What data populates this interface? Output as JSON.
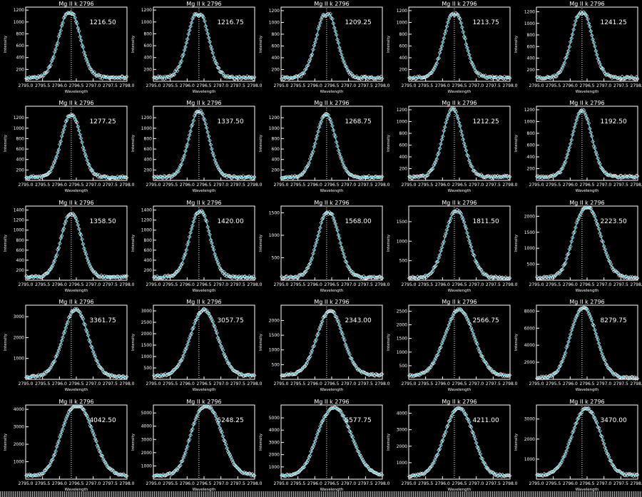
{
  "colors": {
    "background": "#000000",
    "axes": "#ffffff",
    "fit": "#5fd3e6",
    "observed": "#ffffff"
  },
  "chart_data": {
    "type": "line",
    "layout_grid": {
      "rows": 5,
      "cols": 5
    },
    "panels": [
      {
        "title": "Mg II k 2796",
        "annotation": "1216.50",
        "xlabel": "Wavelength",
        "ylabel": "Intensity",
        "xlim": [
          2795.0,
          2798.0
        ],
        "ylim": [
          0,
          1250
        ],
        "yticks": [
          "200",
          "400",
          "600",
          "800",
          "1000",
          "1200"
        ],
        "peak": 1216.5,
        "center": 2796.3,
        "width": 0.31,
        "dip": 0.06,
        "base": 60,
        "shoulder": 0,
        "shoulder_side": 0
      },
      {
        "title": "Mg II k 2796",
        "annotation": "1216.75",
        "xlabel": "Wavelength",
        "ylabel": "Intensity",
        "xlim": [
          2795.0,
          2798.0
        ],
        "ylim": [
          0,
          1250
        ],
        "yticks": [
          "200",
          "400",
          "600",
          "800",
          "1000",
          "1200"
        ],
        "peak": 1216.75,
        "center": 2796.33,
        "width": 0.3,
        "dip": 0.1,
        "base": 60,
        "shoulder": 0,
        "shoulder_side": 0
      },
      {
        "title": "Mg II k 2796",
        "annotation": "1209.25",
        "xlabel": "Wavelength",
        "ylabel": "Intensity",
        "xlim": [
          2795.0,
          2798.0
        ],
        "ylim": [
          0,
          1260
        ],
        "yticks": [
          "200",
          "400",
          "600",
          "800",
          "1000",
          "1200"
        ],
        "peak": 1209.25,
        "center": 2796.35,
        "width": 0.3,
        "dip": 0.08,
        "base": 60,
        "shoulder": 0,
        "shoulder_side": 0
      },
      {
        "title": "Mg II k 2796",
        "annotation": "1213.75",
        "xlabel": "Wavelength",
        "ylabel": "Intensity",
        "xlim": [
          2795.0,
          2798.0
        ],
        "ylim": [
          0,
          1260
        ],
        "yticks": [
          "200",
          "400",
          "600",
          "800",
          "1000",
          "1200"
        ],
        "peak": 1213.75,
        "center": 2796.35,
        "width": 0.3,
        "dip": 0.07,
        "base": 60,
        "shoulder": 0,
        "shoulder_side": 0
      },
      {
        "title": "Mg II k 2796",
        "annotation": "1241.25",
        "xlabel": "Wavelength",
        "ylabel": "Intensity",
        "xlim": [
          2795.0,
          2798.0
        ],
        "ylim": [
          0,
          1280
        ],
        "yticks": [
          "200",
          "400",
          "600",
          "800",
          "1000",
          "1200"
        ],
        "peak": 1241.25,
        "center": 2796.35,
        "width": 0.3,
        "dip": 0.06,
        "base": 60,
        "shoulder": 0,
        "shoulder_side": 0
      },
      {
        "title": "Mg II k 2796",
        "annotation": "1277.25",
        "xlabel": "Wavelength",
        "ylabel": "Intensity",
        "xlim": [
          2795.0,
          2798.0
        ],
        "ylim": [
          0,
          1420
        ],
        "yticks": [
          "200",
          "400",
          "600",
          "800",
          "1000",
          "1200",
          "1400"
        ],
        "peak": 1277.25,
        "center": 2796.35,
        "width": 0.29,
        "dip": 0.03,
        "base": 60,
        "shoulder": 0,
        "shoulder_side": 0
      },
      {
        "title": "Mg II k 2796",
        "annotation": "1337.50",
        "xlabel": "Wavelength",
        "ylabel": "Intensity",
        "xlim": [
          2795.0,
          2798.0
        ],
        "ylim": [
          0,
          1420
        ],
        "yticks": [
          "200",
          "400",
          "600",
          "800",
          "1000",
          "1200",
          "1400"
        ],
        "peak": 1337.5,
        "center": 2796.35,
        "width": 0.29,
        "dip": 0.0,
        "base": 60,
        "shoulder": 0,
        "shoulder_side": 0
      },
      {
        "title": "Mg II k 2796",
        "annotation": "1268.75",
        "xlabel": "Wavelength",
        "ylabel": "Intensity",
        "xlim": [
          2795.0,
          2798.0
        ],
        "ylim": [
          0,
          1420
        ],
        "yticks": [
          "200",
          "400",
          "600",
          "800",
          "1000",
          "1200",
          "1400"
        ],
        "peak": 1268.75,
        "center": 2796.33,
        "width": 0.29,
        "dip": 0.0,
        "base": 60,
        "shoulder": 0,
        "shoulder_side": 0
      },
      {
        "title": "Mg II k 2796",
        "annotation": "1212.25",
        "xlabel": "Wavelength",
        "ylabel": "Intensity",
        "xlim": [
          2795.0,
          2798.0
        ],
        "ylim": [
          0,
          1260
        ],
        "yticks": [
          "200",
          "400",
          "600",
          "800",
          "1000",
          "1200"
        ],
        "peak": 1212.25,
        "center": 2796.3,
        "width": 0.29,
        "dip": 0.0,
        "base": 60,
        "shoulder": 0,
        "shoulder_side": 0
      },
      {
        "title": "Mg II k 2796",
        "annotation": "1192.50",
        "xlabel": "Wavelength",
        "ylabel": "Intensity",
        "xlim": [
          2795.0,
          2798.0
        ],
        "ylim": [
          0,
          1260
        ],
        "yticks": [
          "200",
          "400",
          "600",
          "800",
          "1000",
          "1200"
        ],
        "peak": 1192.5,
        "center": 2796.35,
        "width": 0.29,
        "dip": 0.0,
        "base": 60,
        "shoulder": 0,
        "shoulder_side": 0
      },
      {
        "title": "Mg II k 2796",
        "annotation": "1358.50",
        "xlabel": "Wavelength",
        "ylabel": "Intensity",
        "xlim": [
          2795.0,
          2798.0
        ],
        "ylim": [
          0,
          1480
        ],
        "yticks": [
          "200",
          "400",
          "600",
          "800",
          "1000",
          "1200",
          "1400"
        ],
        "peak": 1358.5,
        "center": 2796.35,
        "width": 0.3,
        "dip": 0.04,
        "base": 60,
        "shoulder": 0,
        "shoulder_side": 0
      },
      {
        "title": "Mg II k 2796",
        "annotation": "1420.00",
        "xlabel": "Wavelength",
        "ylabel": "Intensity",
        "xlim": [
          2795.0,
          2798.0
        ],
        "ylim": [
          0,
          1480
        ],
        "yticks": [
          "200",
          "400",
          "600",
          "800",
          "1000",
          "1200",
          "1400"
        ],
        "peak": 1420.0,
        "center": 2796.38,
        "width": 0.3,
        "dip": 0.03,
        "base": 60,
        "shoulder": 0,
        "shoulder_side": 0
      },
      {
        "title": "Mg II k 2796",
        "annotation": "1568.00",
        "xlabel": "Wavelength",
        "ylabel": "Intensity",
        "xlim": [
          2795.0,
          2798.0
        ],
        "ylim": [
          0,
          1650
        ],
        "yticks": [
          "500",
          "1000",
          "1500"
        ],
        "peak": 1568.0,
        "center": 2796.4,
        "width": 0.31,
        "dip": 0.05,
        "base": 60,
        "shoulder": 0,
        "shoulder_side": 0
      },
      {
        "title": "Mg II k 2796",
        "annotation": "1811.50",
        "xlabel": "Wavelength",
        "ylabel": "Intensity",
        "xlim": [
          2795.0,
          2798.0
        ],
        "ylim": [
          0,
          1900
        ],
        "yticks": [
          "500",
          "1000",
          "1500"
        ],
        "peak": 1811.5,
        "center": 2796.42,
        "width": 0.34,
        "dip": 0.02,
        "base": 60,
        "shoulder": 0,
        "shoulder_side": 0
      },
      {
        "title": "Mg II k 2796",
        "annotation": "2223.50",
        "xlabel": "Wavelength",
        "ylabel": "Intensity",
        "xlim": [
          2795.0,
          2798.0
        ],
        "ylim": [
          0,
          2320
        ],
        "yticks": [
          "500",
          "1000",
          "1500",
          "2000"
        ],
        "peak": 2223.5,
        "center": 2796.55,
        "width": 0.36,
        "dip": 0.0,
        "base": 80,
        "shoulder": 0.18,
        "shoulder_side": -1
      },
      {
        "title": "Mg II k 2796",
        "annotation": "3361.75",
        "xlabel": "Wavelength",
        "ylabel": "Intensity",
        "xlim": [
          2795.0,
          2798.0
        ],
        "ylim": [
          0,
          3550
        ],
        "yticks": [
          "1000",
          "2000",
          "3000"
        ],
        "peak": 3361.75,
        "center": 2796.48,
        "width": 0.37,
        "dip": 0.0,
        "base": 120,
        "shoulder": 0,
        "shoulder_side": 0
      },
      {
        "title": "Mg II k 2796",
        "annotation": "3057.75",
        "xlabel": "Wavelength",
        "ylabel": "Intensity",
        "xlim": [
          2795.0,
          2798.0
        ],
        "ylim": [
          0,
          3250
        ],
        "yticks": [
          "500",
          "1000",
          "1500",
          "2000",
          "2500",
          "3000"
        ],
        "peak": 3057.75,
        "center": 2796.5,
        "width": 0.4,
        "dip": 0.0,
        "base": 150,
        "shoulder": 0,
        "shoulder_side": 0
      },
      {
        "title": "Mg II k 2796",
        "annotation": "2343.00",
        "xlabel": "Wavelength",
        "ylabel": "Intensity",
        "xlim": [
          2795.0,
          2798.0
        ],
        "ylim": [
          0,
          2520
        ],
        "yticks": [
          "500",
          "1000",
          "1500",
          "2000",
          "2500"
        ],
        "peak": 2343.0,
        "center": 2796.45,
        "width": 0.38,
        "dip": 0.0,
        "base": 150,
        "shoulder": 0,
        "shoulder_side": 0
      },
      {
        "title": "Mg II k 2796",
        "annotation": "2566.75",
        "xlabel": "Wavelength",
        "ylabel": "Intensity",
        "xlim": [
          2795.0,
          2798.0
        ],
        "ylim": [
          0,
          2720
        ],
        "yticks": [
          "500",
          "1000",
          "1500",
          "2000",
          "2500"
        ],
        "peak": 2566.75,
        "center": 2796.5,
        "width": 0.43,
        "dip": 0.0,
        "base": 120,
        "shoulder": 0,
        "shoulder_side": 0
      },
      {
        "title": "Mg II k 2796",
        "annotation": "8279.75",
        "xlabel": "Wavelength",
        "ylabel": "Intensity",
        "xlim": [
          2795.0,
          2798.0
        ],
        "ylim": [
          0,
          8700
        ],
        "yticks": [
          "2000",
          "4000",
          "6000",
          "8000"
        ],
        "peak": 8279.75,
        "center": 2796.42,
        "width": 0.36,
        "dip": 0.0,
        "base": 200,
        "shoulder": 0.1,
        "shoulder_side": -1
      },
      {
        "title": "Mg II k 2796",
        "annotation": "4042.50",
        "xlabel": "Wavelength",
        "ylabel": "Intensity",
        "xlim": [
          2795.0,
          2798.0
        ],
        "ylim": [
          0,
          4250
        ],
        "yticks": [
          "1000",
          "2000",
          "3000",
          "4000"
        ],
        "peak": 4042.5,
        "center": 2796.6,
        "width": 0.42,
        "dip": 0.0,
        "base": 200,
        "shoulder": 0.22,
        "shoulder_side": -1
      },
      {
        "title": "Mg II k 2796",
        "annotation": "5248.25",
        "xlabel": "Wavelength",
        "ylabel": "Intensity",
        "xlim": [
          2795.0,
          2798.0
        ],
        "ylim": [
          0,
          5600
        ],
        "yticks": [
          "1000",
          "2000",
          "3000",
          "4000",
          "5000"
        ],
        "peak": 5248.25,
        "center": 2796.65,
        "width": 0.4,
        "dip": 0.0,
        "base": 300,
        "shoulder": 0.25,
        "shoulder_side": -1
      },
      {
        "title": "Mg II k 2796",
        "annotation": "5577.75",
        "xlabel": "Wavelength",
        "ylabel": "Intensity",
        "xlim": [
          2795.0,
          2798.0
        ],
        "ylim": [
          0,
          6050
        ],
        "yticks": [
          "1000",
          "2000",
          "3000",
          "4000",
          "5000",
          "6000"
        ],
        "peak": 5577.75,
        "center": 2796.65,
        "width": 0.45,
        "dip": 0.0,
        "base": 300,
        "shoulder": 0.2,
        "shoulder_side": -1
      },
      {
        "title": "Mg II k 2796",
        "annotation": "4211.00",
        "xlabel": "Wavelength",
        "ylabel": "Intensity",
        "xlim": [
          2795.0,
          2798.0
        ],
        "ylim": [
          0,
          4500
        ],
        "yticks": [
          "1000",
          "2000",
          "3000",
          "4000"
        ],
        "peak": 4211.0,
        "center": 2796.45,
        "width": 0.4,
        "dip": 0.0,
        "base": 200,
        "shoulder": 0.12,
        "shoulder_side": 1
      },
      {
        "title": "Mg II k 2796",
        "annotation": "3470.00",
        "xlabel": "Wavelength",
        "ylabel": "Intensity",
        "xlim": [
          2795.0,
          2798.0
        ],
        "ylim": [
          0,
          3700
        ],
        "yticks": [
          "1000",
          "2000",
          "3000"
        ],
        "peak": 3470.0,
        "center": 2796.45,
        "width": 0.4,
        "dip": 0.0,
        "base": 200,
        "shoulder": 0.1,
        "shoulder_side": 1
      }
    ],
    "xticks": [
      "2795.0",
      "2795.5",
      "2796.0",
      "2796.5",
      "2797.0",
      "2797.5",
      "2798.0"
    ],
    "xtick_values": [
      2795.0,
      2795.5,
      2796.0,
      2796.5,
      2797.0,
      2797.5,
      2798.0
    ],
    "reference_line_x": 2796.35,
    "series": [
      {
        "name": "observed",
        "marker": "diamond",
        "color": "#ffffff"
      },
      {
        "name": "fit",
        "marker": "line",
        "color": "#5fd3e6"
      }
    ],
    "grid": false,
    "legend": "none"
  }
}
